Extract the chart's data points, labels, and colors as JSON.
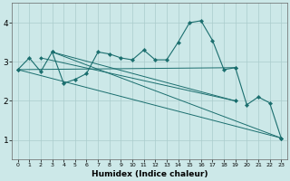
{
  "xlabel": "Humidex (Indice chaleur)",
  "bg_color": "#cce8e8",
  "grid_color": "#aacccc",
  "line_color": "#1a6e6e",
  "marker_color": "#1a6e6e",
  "xlim": [
    -0.5,
    23.5
  ],
  "ylim": [
    0.5,
    4.5
  ],
  "xticks": [
    0,
    1,
    2,
    3,
    4,
    5,
    6,
    7,
    8,
    9,
    10,
    11,
    12,
    13,
    14,
    15,
    16,
    17,
    18,
    19,
    20,
    21,
    22,
    23
  ],
  "yticks": [
    1,
    2,
    3,
    4
  ],
  "main_series": [
    2.8,
    3.1,
    2.75,
    3.25,
    2.45,
    2.55,
    2.7,
    3.25,
    3.2,
    3.1,
    3.05,
    3.3,
    3.05,
    3.05,
    3.5,
    4.0,
    4.05,
    3.55,
    2.8,
    2.85,
    1.9,
    2.1,
    1.95,
    1.05
  ],
  "trend_lines": [
    {
      "x0": 0,
      "y0": 2.8,
      "x1": 23,
      "y1": 1.05
    },
    {
      "x0": 0,
      "y0": 2.8,
      "x1": 19,
      "y1": 2.85
    },
    {
      "x0": 2,
      "y0": 3.1,
      "x1": 19,
      "y1": 2.0
    },
    {
      "x0": 3,
      "y0": 3.25,
      "x1": 19,
      "y1": 2.0
    },
    {
      "x0": 3,
      "y0": 3.25,
      "x1": 23,
      "y1": 1.05
    }
  ]
}
